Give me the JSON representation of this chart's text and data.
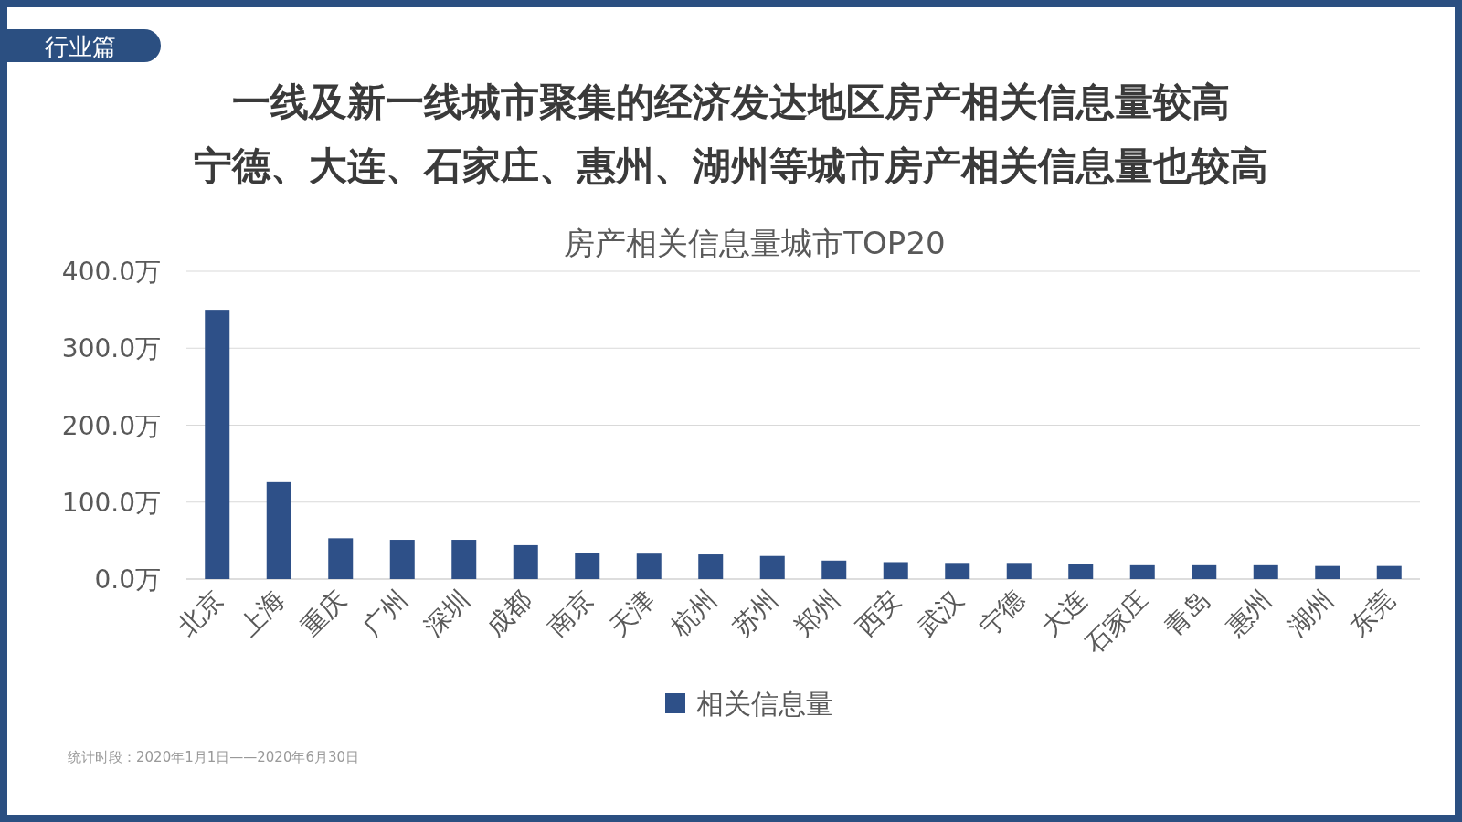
{
  "chart_data": {
    "type": "bar",
    "title": "房产相关信息量城市TOP20",
    "annotations": [
      "行业篇",
      "一线及新一线城市聚集的经济发达地区房产相关信息量较高",
      "宁德、大连、石家庄、惠州、湖州等城市房产相关信息量也较高",
      "统计时段：2020年1月1日——2020年6月30日"
    ],
    "categories": [
      "北京",
      "上海",
      "重庆",
      "广州",
      "深圳",
      "成都",
      "南京",
      "天津",
      "杭州",
      "苏州",
      "郑州",
      "西安",
      "武汉",
      "宁德",
      "大连",
      "石家庄",
      "青岛",
      "惠州",
      "湖州",
      "东莞"
    ],
    "series": [
      {
        "name": "相关信息量",
        "color": "#2e5088",
        "values": [
          350,
          126,
          53,
          51,
          51,
          44,
          34,
          33,
          32,
          30,
          24,
          22,
          21,
          21,
          19,
          18,
          18,
          18,
          17,
          17
        ]
      }
    ],
    "ylim": [
      0,
      400
    ],
    "yticks": [
      {
        "value": 0,
        "label": "0.0万"
      },
      {
        "value": 100,
        "label": "100.0万"
      },
      {
        "value": 200,
        "label": "200.0万"
      },
      {
        "value": 300,
        "label": "300.0万"
      },
      {
        "value": 400,
        "label": "400.0万"
      }
    ],
    "grid": "y",
    "legend": "bottom"
  }
}
